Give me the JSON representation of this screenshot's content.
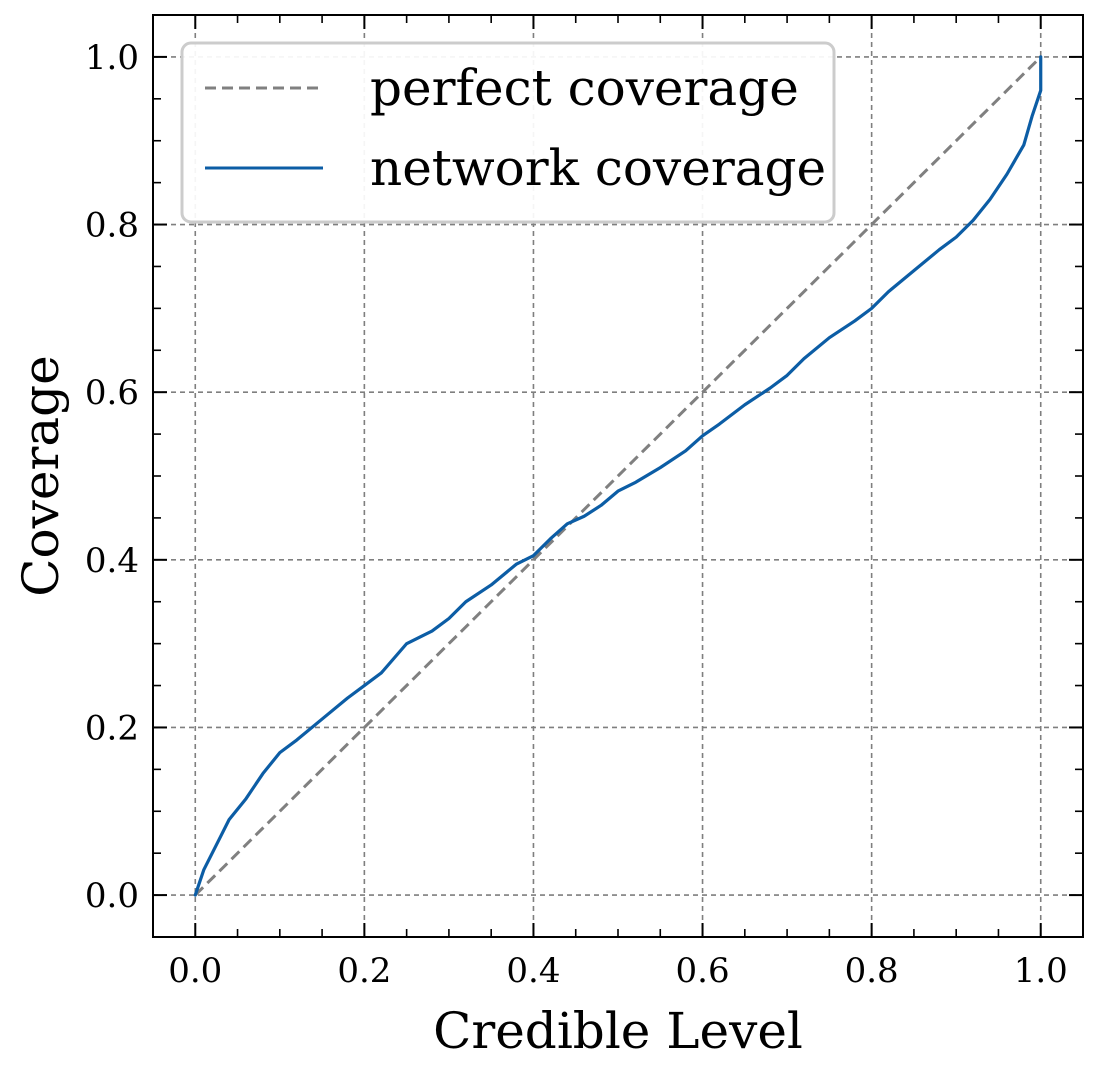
{
  "chart_data": {
    "type": "line",
    "title": "",
    "xlabel": "Credible Level",
    "ylabel": "Coverage",
    "xlim": [
      -0.05,
      1.05
    ],
    "ylim": [
      -0.05,
      1.05
    ],
    "xticks": [
      "0.0",
      "0.2",
      "0.4",
      "0.6",
      "0.8",
      "1.0"
    ],
    "yticks": [
      "0.0",
      "0.2",
      "0.4",
      "0.6",
      "0.8",
      "1.0"
    ],
    "grid": true,
    "grid_style": "dashed",
    "legend_position": "top-left",
    "series": [
      {
        "name": "perfect coverage",
        "style": "dashed",
        "color": "#808080",
        "x": [
          0.0,
          1.0
        ],
        "y": [
          0.0,
          1.0
        ]
      },
      {
        "name": "network coverage",
        "style": "solid",
        "color": "#0c5da5",
        "x": [
          0.0,
          0.01,
          0.02,
          0.03,
          0.04,
          0.06,
          0.08,
          0.1,
          0.12,
          0.15,
          0.18,
          0.2,
          0.22,
          0.25,
          0.28,
          0.3,
          0.32,
          0.35,
          0.38,
          0.4,
          0.42,
          0.44,
          0.46,
          0.48,
          0.5,
          0.52,
          0.55,
          0.58,
          0.6,
          0.62,
          0.65,
          0.68,
          0.7,
          0.72,
          0.75,
          0.78,
          0.8,
          0.82,
          0.85,
          0.88,
          0.9,
          0.92,
          0.94,
          0.96,
          0.98,
          0.99,
          1.0,
          1.0
        ],
        "y": [
          0.0,
          0.03,
          0.05,
          0.07,
          0.09,
          0.115,
          0.145,
          0.17,
          0.185,
          0.21,
          0.235,
          0.25,
          0.265,
          0.3,
          0.315,
          0.33,
          0.35,
          0.37,
          0.395,
          0.405,
          0.425,
          0.443,
          0.452,
          0.465,
          0.482,
          0.492,
          0.51,
          0.53,
          0.548,
          0.562,
          0.585,
          0.605,
          0.62,
          0.64,
          0.665,
          0.685,
          0.7,
          0.72,
          0.745,
          0.77,
          0.785,
          0.805,
          0.83,
          0.86,
          0.895,
          0.93,
          0.96,
          1.0
        ]
      }
    ]
  }
}
